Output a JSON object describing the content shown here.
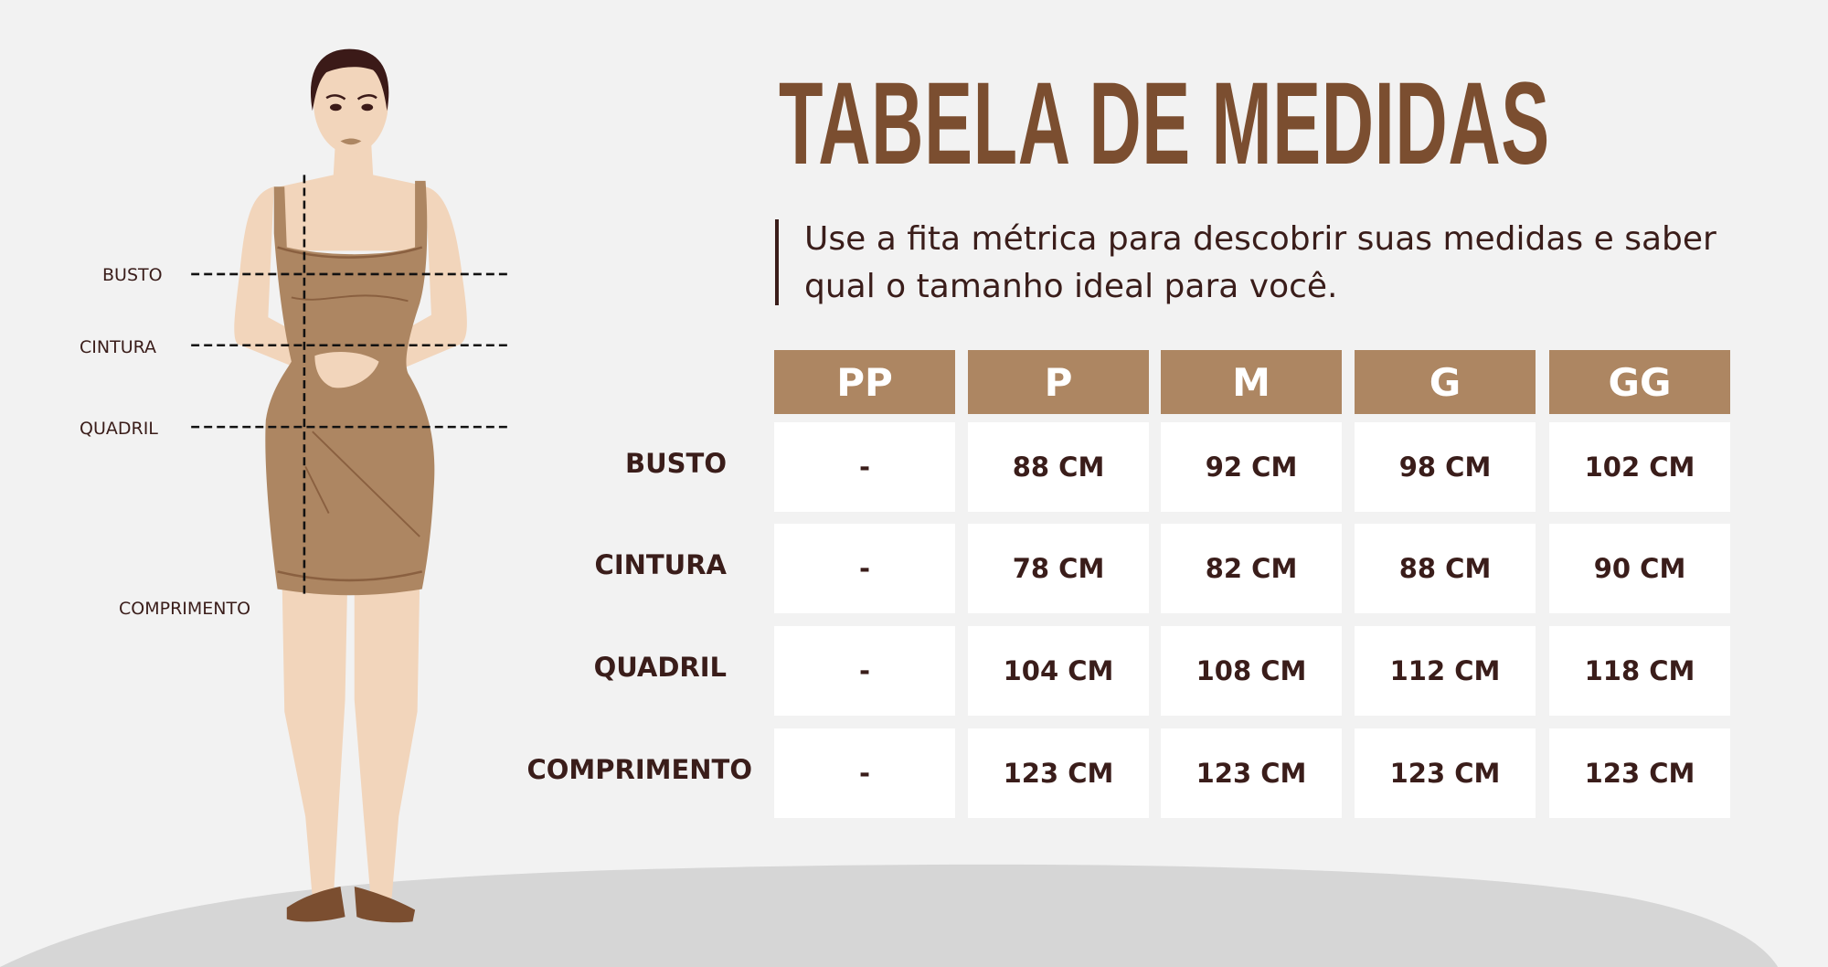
{
  "title": "TABELA DE MEDIDAS",
  "subtitle": "Use a fita métrica para descobrir suas medidas e saber qual o tamanho ideal para você.",
  "figure_labels": {
    "busto": "BUSTO",
    "cintura": "CINTURA",
    "quadril": "QUADRIL",
    "comprimento": "COMPRIMENTO"
  },
  "table": {
    "sizes": [
      "PP",
      "P",
      "M",
      "G",
      "GG"
    ],
    "rows": [
      {
        "label": "BUSTO",
        "values": [
          "-",
          "88 CM",
          "92 CM",
          "98 CM",
          "102 CM"
        ]
      },
      {
        "label": "CINTURA",
        "values": [
          "-",
          "78 CM",
          "82 CM",
          "88 CM",
          "90 CM"
        ]
      },
      {
        "label": "QUADRIL",
        "values": [
          "-",
          "104 CM",
          "108 CM",
          "112 CM",
          "118 CM"
        ]
      },
      {
        "label": "COMPRIMENTO",
        "values": [
          "-",
          "123 CM",
          "123 CM",
          "123 CM",
          "123 CM"
        ]
      }
    ]
  },
  "colors": {
    "header": "#ad8662",
    "title": "#7b4e30",
    "text": "#3a1d1a",
    "background": "#f2f2f2",
    "skin": "#f2d5bb",
    "dress": "#ad8662"
  }
}
